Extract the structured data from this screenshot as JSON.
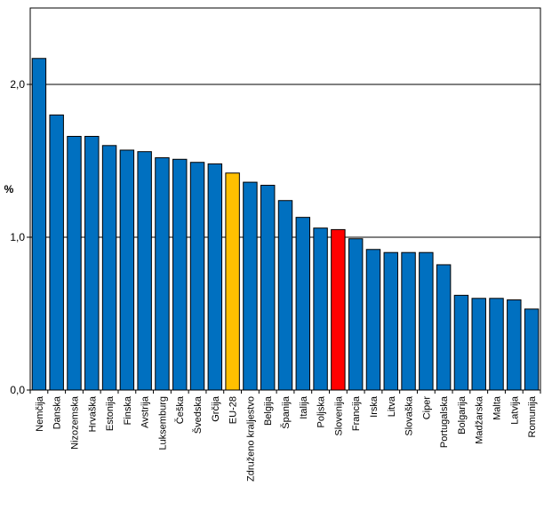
{
  "chart_data": {
    "type": "bar",
    "title": "",
    "xlabel": "",
    "ylabel": "%",
    "ylim": [
      0,
      2.5
    ],
    "yticks": [
      0,
      1,
      2
    ],
    "ytick_labels": [
      "0,0",
      "1,0",
      "2,0"
    ],
    "grid": true,
    "legend": "none",
    "colors": {
      "default": "#0070C0",
      "EU-28": "#FFC000",
      "Slovenija": "#FF0000",
      "edge": "#000000"
    },
    "categories": [
      "Nemčija",
      "Danska",
      "Nizozemska",
      "Hrvaška",
      "Estonija",
      "Finska",
      "Avstrija",
      "Luksemburg",
      "Češka",
      "Švedska",
      "Grčija",
      "EU-28",
      "Združeno kraljestvo",
      "Belgija",
      "Španija",
      "Italija",
      "Poljska",
      "Slovenija",
      "Francija",
      "Irska",
      "Litva",
      "Slovaška",
      "Ciper",
      "Portugalska",
      "Bolgarija",
      "Madžarska",
      "Malta",
      "Latvija",
      "Romunija"
    ],
    "values": [
      2.17,
      1.8,
      1.66,
      1.66,
      1.6,
      1.57,
      1.56,
      1.52,
      1.51,
      1.49,
      1.48,
      1.42,
      1.36,
      1.34,
      1.24,
      1.13,
      1.06,
      1.05,
      0.99,
      0.92,
      0.9,
      0.9,
      0.9,
      0.82,
      0.62,
      0.6,
      0.6,
      0.59,
      0.53
    ]
  }
}
